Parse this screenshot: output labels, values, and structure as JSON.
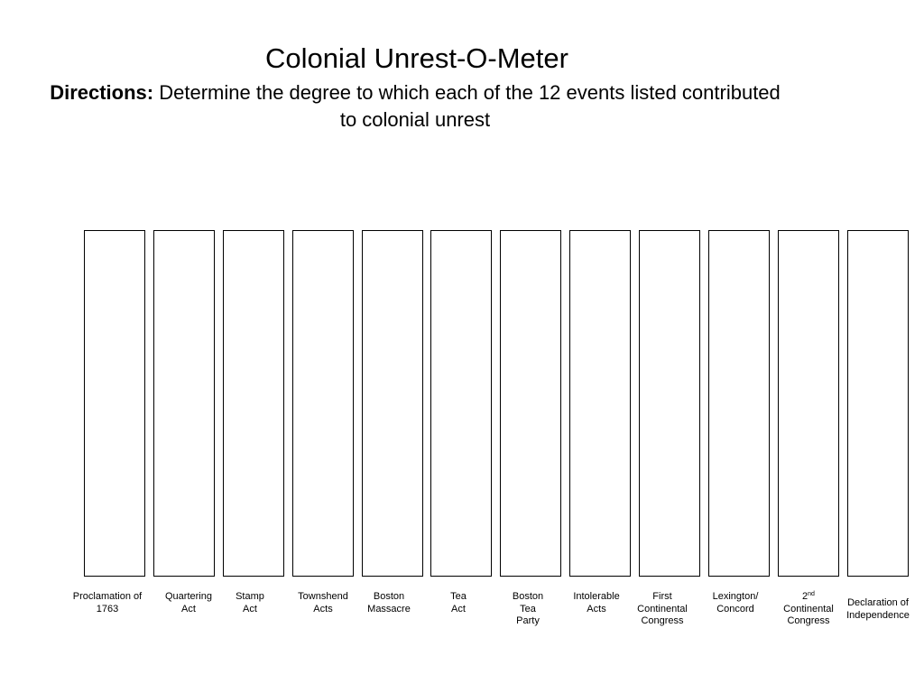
{
  "worksheet": {
    "title": "Colonial Unrest-O-Meter",
    "directions_label": "Directions:",
    "directions_text": "Determine the degree to which each of the 12 events listed contributed to colonial unrest"
  },
  "events": [
    {
      "label": "Proclamation of\n1763"
    },
    {
      "label": "Quartering\nAct"
    },
    {
      "label": "Stamp\nAct"
    },
    {
      "label": "Townshend\nActs"
    },
    {
      "label": "Boston\nMassacre"
    },
    {
      "label": "Tea\nAct"
    },
    {
      "label": "Boston\nTea\nParty"
    },
    {
      "label": "Intolerable\nActs"
    },
    {
      "label": "First\nContinental\nCongress"
    },
    {
      "label": "Lexington/\nConcord"
    },
    {
      "label_number": "2",
      "label_suffix": "nd",
      "label_rest": "\nContinental\nCongress"
    },
    {
      "label": "Declaration of\nIndependence"
    }
  ]
}
